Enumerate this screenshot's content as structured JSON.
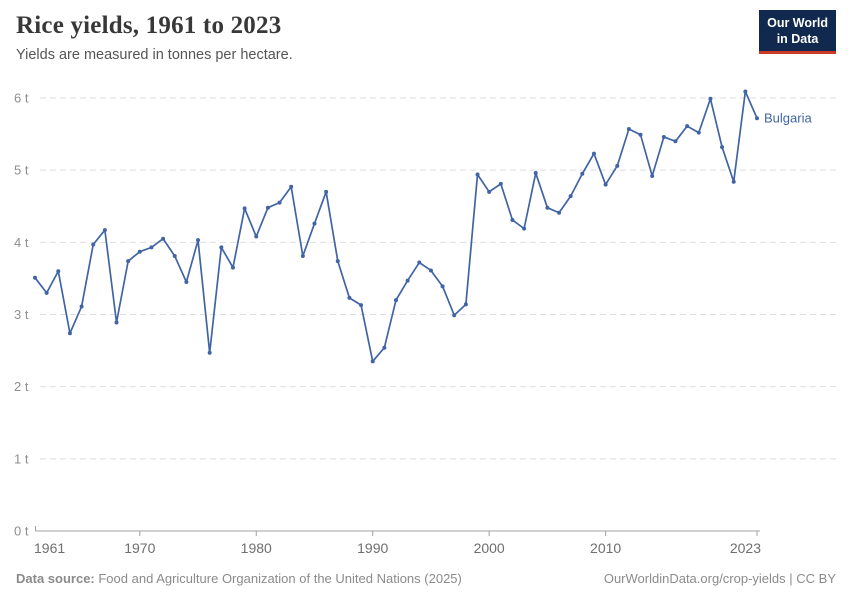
{
  "header": {
    "title": "Rice yields, 1961 to 2023",
    "subtitle": "Yields are measured in tonnes per hectare."
  },
  "logo": {
    "line1": "Our World",
    "line2": "in Data",
    "bg": "#12294f",
    "accent": "#ca3a27"
  },
  "chart_data": {
    "type": "line",
    "title": "Rice yields, 1961 to 2023",
    "subtitle": "Yields are measured in tonnes per hectare.",
    "unit": "tonnes per hectare",
    "x": [
      1961,
      1962,
      1963,
      1964,
      1965,
      1966,
      1967,
      1968,
      1969,
      1970,
      1971,
      1972,
      1973,
      1974,
      1975,
      1976,
      1977,
      1978,
      1979,
      1980,
      1981,
      1982,
      1983,
      1984,
      1985,
      1986,
      1987,
      1988,
      1989,
      1990,
      1991,
      1992,
      1993,
      1994,
      1995,
      1996,
      1997,
      1998,
      1999,
      2000,
      2001,
      2002,
      2003,
      2004,
      2005,
      2006,
      2007,
      2008,
      2009,
      2010,
      2011,
      2012,
      2013,
      2014,
      2015,
      2016,
      2017,
      2018,
      2019,
      2020,
      2021,
      2022,
      2023
    ],
    "series": [
      {
        "name": "Bulgaria",
        "color": "#4064a4",
        "values": [
          3.51,
          3.3,
          3.6,
          2.74,
          3.11,
          3.97,
          4.17,
          2.89,
          3.74,
          3.87,
          3.93,
          4.05,
          3.81,
          3.45,
          4.03,
          2.47,
          3.93,
          3.65,
          4.47,
          4.08,
          4.48,
          4.55,
          4.77,
          3.81,
          4.26,
          4.7,
          3.74,
          3.23,
          3.13,
          2.35,
          2.54,
          3.2,
          3.47,
          3.72,
          3.61,
          3.39,
          2.99,
          3.14,
          4.94,
          4.7,
          4.81,
          4.31,
          4.19,
          4.96,
          4.48,
          4.41,
          4.64,
          4.95,
          5.23,
          4.8,
          5.06,
          5.57,
          5.49,
          4.92,
          5.46,
          5.4,
          5.61,
          5.52,
          5.99,
          5.32,
          4.84,
          6.09,
          5.72
        ]
      }
    ],
    "xlim": [
      1961,
      2023
    ],
    "ylim": [
      0,
      6
    ],
    "x_ticks": [
      1961,
      1970,
      1980,
      1990,
      2000,
      2010,
      2023
    ],
    "y_tick_labels": [
      "0 t",
      "1 t",
      "2 t",
      "3 t",
      "4 t",
      "5 t",
      "6 t"
    ],
    "grid": true,
    "legend_position": "end-of-line label"
  },
  "footer": {
    "source_label": "Data source:",
    "source_text": " Food and Agriculture Organization of the United Nations (2025)",
    "right_text": "OurWorldinData.org/crop-yields | CC BY"
  }
}
